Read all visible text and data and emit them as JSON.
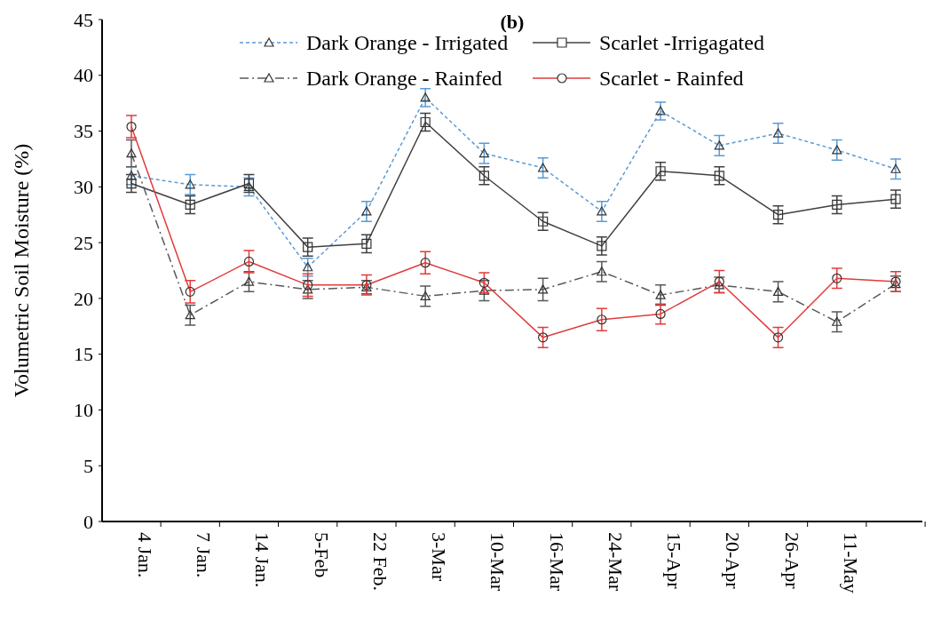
{
  "chart_data": {
    "type": "line",
    "title": "(b)",
    "ylabel": "Volumetric Soil Moisture (%)",
    "categories": [
      "4 Jan.",
      "7 Jan.",
      "14 Jan.",
      "5-Feb",
      "22 Feb.",
      "3-Mar",
      "10-Mar",
      "16-Mar",
      "24-Mar",
      "15-Apr",
      "20-Apr",
      "26-Apr",
      "11-May",
      null
    ],
    "ylim": [
      0,
      45
    ],
    "yticks": [
      0,
      5,
      10,
      15,
      20,
      25,
      30,
      35,
      40,
      45
    ],
    "grid": false,
    "legend": "top",
    "series": [
      {
        "name": "Dark Orange - Irrigated",
        "color": "#5b9bd5",
        "marker": "triangle",
        "line_style": "dotted",
        "values": [
          31,
          30.2,
          30,
          22.8,
          27.8,
          38,
          33,
          31.7,
          27.8,
          36.8,
          33.7,
          34.8,
          33.3,
          31.6
        ],
        "errors": [
          0.8,
          0.9,
          0.8,
          0.8,
          0.9,
          0.8,
          0.9,
          0.9,
          0.9,
          0.8,
          0.9,
          0.9,
          0.9,
          0.9
        ]
      },
      {
        "name": "Scarlet -Irrigagated",
        "color": "#404040",
        "marker": "square",
        "line_style": "solid",
        "values": [
          30.3,
          28.4,
          30.3,
          24.6,
          24.9,
          35.8,
          31,
          26.9,
          24.7,
          31.4,
          31,
          27.5,
          28.4,
          28.9
        ],
        "errors": [
          0.8,
          0.8,
          0.8,
          0.8,
          0.8,
          0.8,
          0.8,
          0.8,
          0.8,
          0.8,
          0.8,
          0.8,
          0.8,
          0.8
        ]
      },
      {
        "name": "Dark Orange - Rainfed",
        "color": "#595959",
        "marker": "triangle",
        "line_style": "dashed",
        "values": [
          33,
          18.5,
          21.5,
          20.8,
          21,
          20.2,
          20.7,
          20.8,
          22.4,
          20.3,
          21.2,
          20.6,
          17.9,
          21.3
        ],
        "errors": [
          1.2,
          0.9,
          0.9,
          0.8,
          0.6,
          0.9,
          0.9,
          1,
          0.9,
          0.9,
          0.7,
          0.9,
          0.9,
          0.7
        ]
      },
      {
        "name": "Scarlet - Rainfed",
        "color": "#e03c3c",
        "marker": "circle",
        "line_style": "solid",
        "values": [
          35.4,
          20.6,
          23.3,
          21.2,
          21.2,
          23.2,
          21.4,
          16.5,
          18.1,
          18.6,
          21.5,
          16.5,
          21.8,
          21.5
        ],
        "errors": [
          1,
          1,
          1,
          1,
          0.9,
          1,
          0.9,
          0.9,
          1,
          0.9,
          1,
          0.9,
          0.9,
          0.9
        ]
      }
    ]
  }
}
